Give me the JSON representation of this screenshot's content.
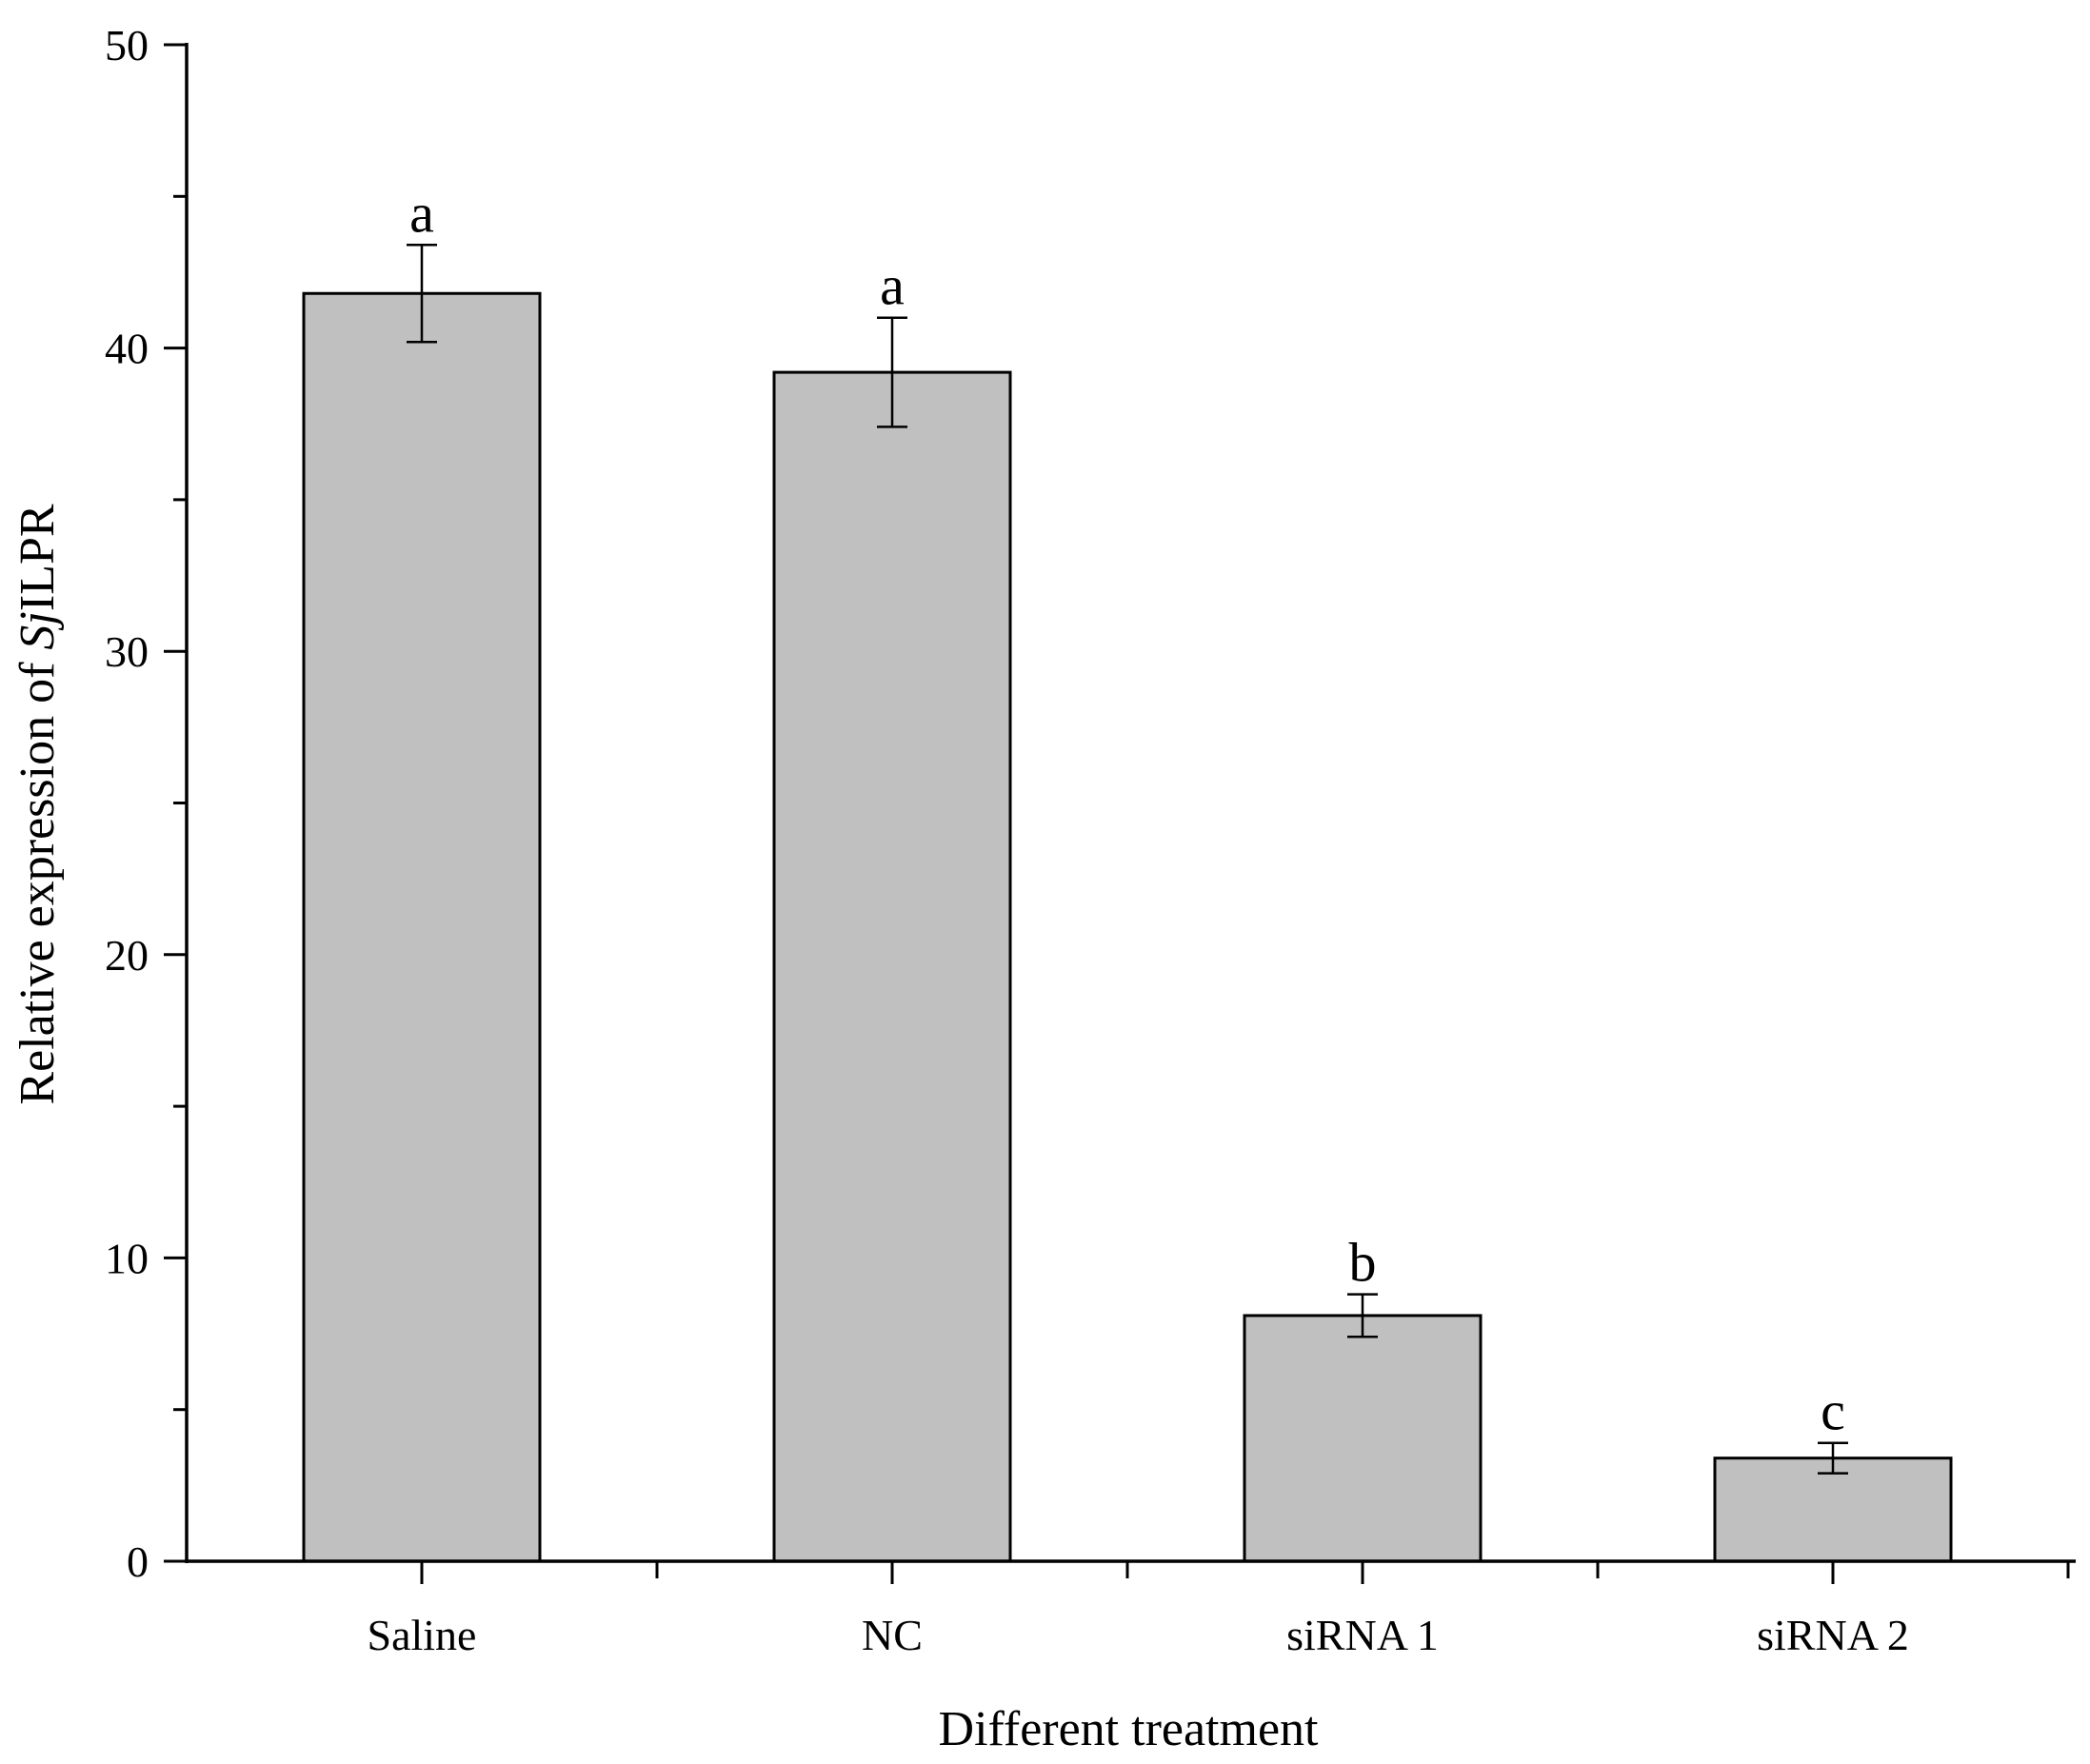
{
  "chart_data": {
    "type": "bar",
    "categories": [
      "Saline",
      "NC",
      "siRNA 1",
      "siRNA 2"
    ],
    "values": [
      41.8,
      39.2,
      8.1,
      3.4
    ],
    "errors": [
      1.6,
      1.8,
      0.7,
      0.5
    ],
    "significance": [
      "a",
      "a",
      "b",
      "c"
    ],
    "xlabel": "Different treatment",
    "ylabel_prefix": "Relative expression of ",
    "ylabel_italic": "Sj",
    "ylabel_suffix": "ILPR",
    "ylim": [
      0,
      50
    ],
    "yticks": [
      0,
      10,
      20,
      30,
      40,
      50
    ],
    "bar_color": "#c0c0c0",
    "grid": false,
    "legend": false
  }
}
